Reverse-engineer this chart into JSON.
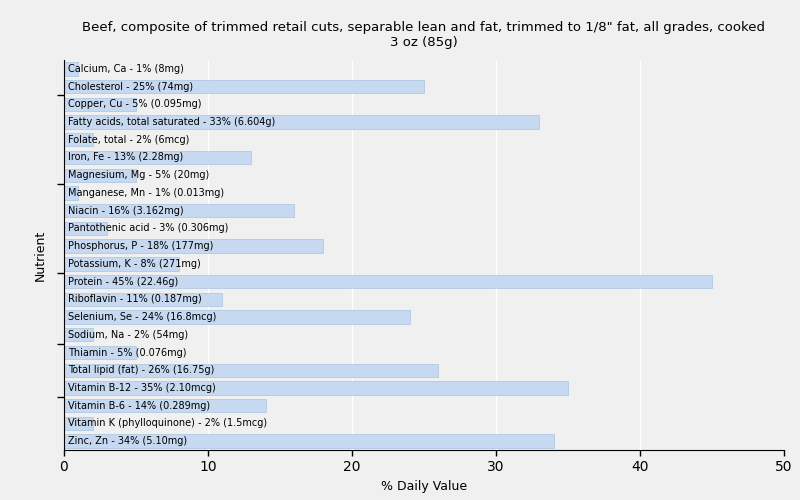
{
  "title": "Beef, composite of trimmed retail cuts, separable lean and fat, trimmed to 1/8\" fat, all grades, cooked\n3 oz (85g)",
  "xlabel": "% Daily Value",
  "ylabel": "Nutrient",
  "bar_color": "#c6d9f1",
  "bar_edgecolor": "#a8c4e0",
  "background_color": "#f0f0f0",
  "plot_bg_color": "#f0f0f0",
  "xlim": [
    0,
    50
  ],
  "xticks": [
    0,
    10,
    20,
    30,
    40,
    50
  ],
  "nutrients": [
    "Calcium, Ca - 1% (8mg)",
    "Cholesterol - 25% (74mg)",
    "Copper, Cu - 5% (0.095mg)",
    "Fatty acids, total saturated - 33% (6.604g)",
    "Folate, total - 2% (6mcg)",
    "Iron, Fe - 13% (2.28mg)",
    "Magnesium, Mg - 5% (20mg)",
    "Manganese, Mn - 1% (0.013mg)",
    "Niacin - 16% (3.162mg)",
    "Pantothenic acid - 3% (0.306mg)",
    "Phosphorus, P - 18% (177mg)",
    "Potassium, K - 8% (271mg)",
    "Protein - 45% (22.46g)",
    "Riboflavin - 11% (0.187mg)",
    "Selenium, Se - 24% (16.8mcg)",
    "Sodium, Na - 2% (54mg)",
    "Thiamin - 5% (0.076mg)",
    "Total lipid (fat) - 26% (16.75g)",
    "Vitamin B-12 - 35% (2.10mcg)",
    "Vitamin B-6 - 14% (0.289mg)",
    "Vitamin K (phylloquinone) - 2% (1.5mcg)",
    "Zinc, Zn - 34% (5.10mg)"
  ],
  "values": [
    1,
    25,
    5,
    33,
    2,
    13,
    5,
    1,
    16,
    3,
    18,
    8,
    45,
    11,
    24,
    2,
    5,
    26,
    35,
    14,
    2,
    34
  ],
  "ytick_positions_from_top": [
    2,
    7,
    12,
    16,
    19
  ],
  "bar_height": 0.75,
  "label_fontsize": 7.0,
  "title_fontsize": 9.5,
  "axis_label_fontsize": 9
}
